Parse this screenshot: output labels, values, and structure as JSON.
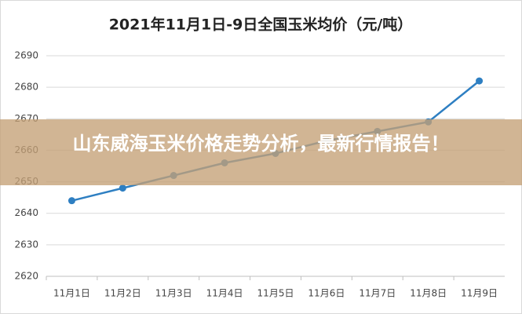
{
  "chart_data": {
    "type": "line",
    "title": "2021年11月1日-9日全国玉米均价（元/吨）",
    "categories": [
      "11月1日",
      "11月2日",
      "11月3日",
      "11月4日",
      "11月5日",
      "11月6日",
      "11月7日",
      "11月8日",
      "11月9日"
    ],
    "series": [
      {
        "name": "全国玉米均价",
        "color": "#2e7fc2",
        "values": [
          2644,
          2648,
          2652,
          2656,
          2659,
          2663,
          2666,
          2669,
          2682
        ]
      }
    ],
    "ylim": [
      2620,
      2690
    ],
    "yticks": [
      2620,
      2630,
      2640,
      2650,
      2660,
      2670,
      2680,
      2690
    ],
    "grid": true
  },
  "banner": {
    "text": "山东威海玉米价格走势分析，最新行情报告！"
  }
}
